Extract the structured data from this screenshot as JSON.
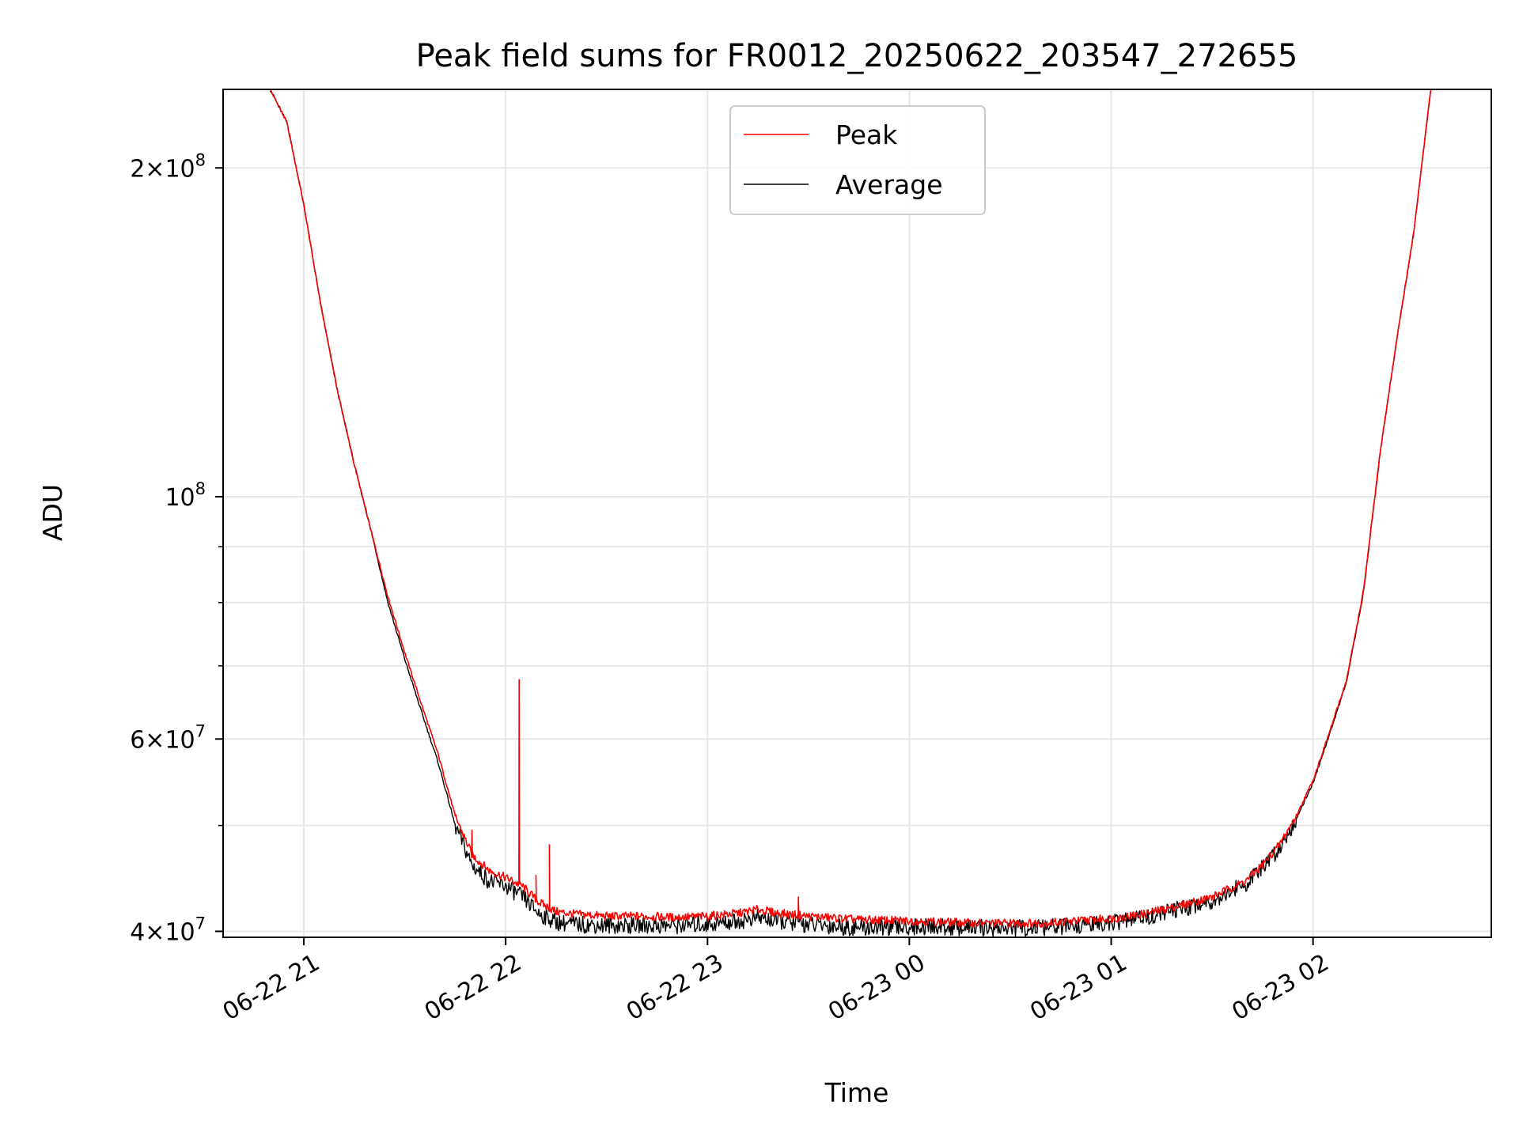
{
  "chart_data": {
    "type": "line",
    "title": "Peak field sums for FR0012_20250622_203547_272655",
    "xlabel": "Time",
    "ylabel": "ADU",
    "yscale": "log",
    "xlim": [
      "2025-06-22 20:36",
      "2025-06-23 02:53"
    ],
    "ylim": [
      39500000,
      236000000
    ],
    "x_ticks": [
      {
        "value": "2025-06-22 21:00",
        "label": "06-22 21"
      },
      {
        "value": "2025-06-22 22:00",
        "label": "06-22 22"
      },
      {
        "value": "2025-06-22 23:00",
        "label": "06-22 23"
      },
      {
        "value": "2025-06-23 00:00",
        "label": "06-23 00"
      },
      {
        "value": "2025-06-23 01:00",
        "label": "06-23 01"
      },
      {
        "value": "2025-06-23 02:00",
        "label": "06-23 02"
      }
    ],
    "y_ticks": [
      {
        "value": 40000000,
        "base": "4",
        "exp": "7"
      },
      {
        "value": 60000000,
        "base": "6",
        "exp": "7"
      },
      {
        "value": 100000000,
        "base": "",
        "exp": "8"
      },
      {
        "value": 200000000,
        "base": "2",
        "exp": "8"
      }
    ],
    "y_minor_ticks": [
      50000000,
      70000000,
      80000000,
      90000000
    ],
    "grid": true,
    "legend_position": "upper-center",
    "series": [
      {
        "name": "Peak",
        "color": "#ff0000",
        "x": [
          "2025-06-22 20:50",
          "2025-06-22 20:55",
          "2025-06-22 21:00",
          "2025-06-22 21:05",
          "2025-06-22 21:10",
          "2025-06-22 21:15",
          "2025-06-22 21:20",
          "2025-06-22 21:25",
          "2025-06-22 21:30",
          "2025-06-22 21:35",
          "2025-06-22 21:40",
          "2025-06-22 21:45",
          "2025-06-22 21:50",
          "2025-06-22 21:55",
          "2025-06-22 22:00",
          "2025-06-22 22:05",
          "2025-06-22 22:10",
          "2025-06-22 22:15",
          "2025-06-22 22:20",
          "2025-06-22 22:30",
          "2025-06-22 22:40",
          "2025-06-22 22:50",
          "2025-06-22 23:00",
          "2025-06-22 23:10",
          "2025-06-22 23:15",
          "2025-06-22 23:20",
          "2025-06-22 23:30",
          "2025-06-22 23:45",
          "2025-06-23 00:00",
          "2025-06-23 00:20",
          "2025-06-23 00:40",
          "2025-06-23 01:00",
          "2025-06-23 01:10",
          "2025-06-23 01:20",
          "2025-06-23 01:30",
          "2025-06-23 01:40",
          "2025-06-23 01:45",
          "2025-06-23 01:50",
          "2025-06-23 01:55",
          "2025-06-23 02:00",
          "2025-06-23 02:05",
          "2025-06-23 02:10",
          "2025-06-23 02:15",
          "2025-06-23 02:20",
          "2025-06-23 02:25",
          "2025-06-23 02:30",
          "2025-06-23 02:35"
        ],
        "y": [
          236000000,
          220000000,
          185000000,
          150000000,
          125000000,
          107000000,
          93000000,
          81000000,
          72000000,
          64500000,
          58000000,
          51000000,
          47000000,
          45500000,
          44800000,
          44000000,
          42500000,
          41700000,
          41500000,
          41300000,
          41300000,
          41200000,
          41300000,
          41600000,
          41900000,
          41600000,
          41300000,
          41000000,
          40900000,
          40700000,
          40700000,
          41100000,
          41500000,
          42200000,
          43000000,
          44500000,
          46000000,
          48000000,
          51000000,
          55000000,
          61000000,
          68000000,
          82000000,
          110000000,
          140000000,
          175000000,
          236000000
        ]
      },
      {
        "name": "Average",
        "color": "#000000",
        "x": [
          "2025-06-22 20:50",
          "2025-06-22 20:55",
          "2025-06-22 21:00",
          "2025-06-22 21:05",
          "2025-06-22 21:10",
          "2025-06-22 21:15",
          "2025-06-22 21:20",
          "2025-06-22 21:25",
          "2025-06-22 21:30",
          "2025-06-22 21:35",
          "2025-06-22 21:40",
          "2025-06-22 21:45",
          "2025-06-22 21:50",
          "2025-06-22 21:55",
          "2025-06-22 22:00",
          "2025-06-22 22:05",
          "2025-06-22 22:10",
          "2025-06-22 22:15",
          "2025-06-22 22:20",
          "2025-06-22 22:30",
          "2025-06-22 22:40",
          "2025-06-22 22:50",
          "2025-06-22 23:00",
          "2025-06-22 23:10",
          "2025-06-22 23:15",
          "2025-06-22 23:20",
          "2025-06-22 23:30",
          "2025-06-22 23:45",
          "2025-06-23 00:00",
          "2025-06-23 00:20",
          "2025-06-23 00:40",
          "2025-06-23 01:00",
          "2025-06-23 01:10",
          "2025-06-23 01:20",
          "2025-06-23 01:30",
          "2025-06-23 01:40",
          "2025-06-23 01:45",
          "2025-06-23 01:50",
          "2025-06-23 01:55",
          "2025-06-23 02:00",
          "2025-06-23 02:05",
          "2025-06-23 02:10",
          "2025-06-23 02:15",
          "2025-06-23 02:20",
          "2025-06-23 02:25",
          "2025-06-23 02:30",
          "2025-06-23 02:35"
        ],
        "y": [
          236000000,
          220000000,
          185000000,
          150000000,
          125000000,
          107000000,
          93000000,
          80000000,
          71000000,
          63500000,
          57000000,
          50000000,
          46000000,
          44500000,
          44000000,
          43000000,
          41500000,
          40800000,
          40600000,
          40500000,
          40500000,
          40500000,
          40600000,
          40900000,
          41200000,
          40900000,
          40600000,
          40300000,
          40400000,
          40300000,
          40300000,
          40700000,
          41200000,
          41900000,
          42700000,
          44200000,
          45700000,
          47700000,
          50700000,
          54700000,
          60700000,
          67700000,
          81700000,
          110000000,
          140000000,
          175000000,
          236000000
        ]
      }
    ],
    "annotations": [
      {
        "series": "Peak",
        "type": "spike",
        "x": "2025-06-22 21:45",
        "y": 51000000
      },
      {
        "series": "Peak",
        "type": "spike",
        "x": "2025-06-22 21:50",
        "y": 49500000
      },
      {
        "series": "Peak",
        "type": "spike",
        "x": "2025-06-22 22:04",
        "y": 68000000
      },
      {
        "series": "Peak",
        "type": "spike",
        "x": "2025-06-22 22:09",
        "y": 45000000
      },
      {
        "series": "Peak",
        "type": "spike",
        "x": "2025-06-22 22:13",
        "y": 48000000
      },
      {
        "series": "Peak",
        "type": "spike",
        "x": "2025-06-22 23:27",
        "y": 43000000
      }
    ]
  }
}
